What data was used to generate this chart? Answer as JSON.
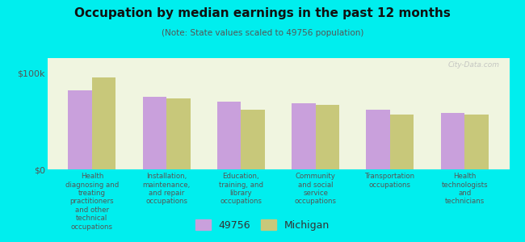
{
  "title": "Occupation by median earnings in the past 12 months",
  "subtitle": "(Note: State values scaled to 49756 population)",
  "background_color": "#00EEEE",
  "plot_bg_color": "#f0f5e0",
  "categories": [
    "Health\ndiagnosing and\ntreating\npractitioners\nand other\ntechnical\noccupations",
    "Installation,\nmaintenance,\nand repair\noccupations",
    "Education,\ntraining, and\nlibrary\noccupations",
    "Community\nand social\nservice\noccupations",
    "Transportation\noccupations",
    "Health\ntechnologists\nand\ntechnicians"
  ],
  "values_49756": [
    82000,
    75000,
    70000,
    68000,
    62000,
    58000
  ],
  "values_michigan": [
    95000,
    73000,
    62000,
    67000,
    57000,
    57000
  ],
  "bar_color_49756": "#c9a0dc",
  "bar_color_michigan": "#c8c87a",
  "yticks": [
    0,
    100000
  ],
  "ytick_labels": [
    "$0",
    "$100k"
  ],
  "ylim": [
    0,
    115000
  ],
  "legend_label_49756": "49756",
  "legend_label_michigan": "Michigan",
  "watermark": "City-Data.com"
}
